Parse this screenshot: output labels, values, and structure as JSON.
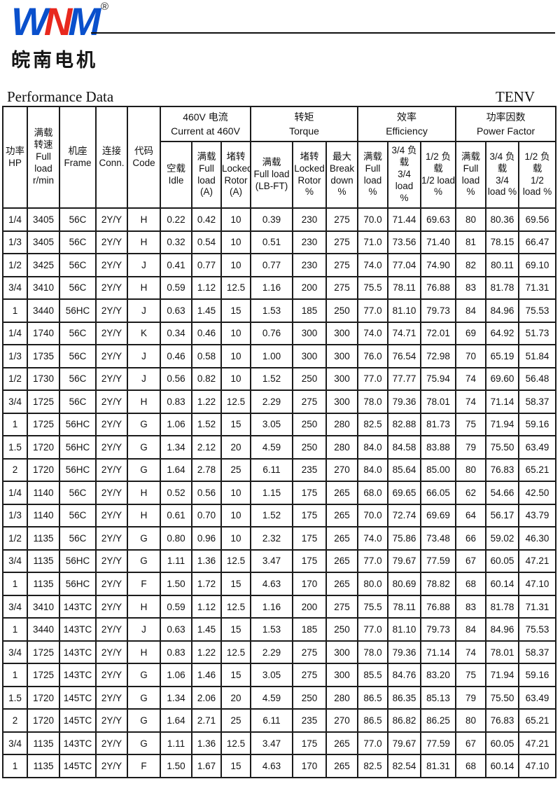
{
  "page": {
    "logo": {
      "letter_w": "W",
      "letter_n": "N",
      "letter_m": "M",
      "registered": "®",
      "cn_name": "皖南电机",
      "blue": "#0a50cc",
      "red": "#e8281e"
    },
    "title": "Performance Data",
    "enclosure": "TENV"
  },
  "table": {
    "col_headers": {
      "hp": "功率\nHP",
      "speed": "满载\n转速\nFull\nload\nr/min",
      "frame": "机座\nFrame",
      "conn": "连接\nConn.",
      "code": "代码\nCode"
    },
    "groups": {
      "current": "460V 电流\nCurrent at 460V",
      "torque": "转矩\nTorque",
      "efficiency": "效率\nEfficiency",
      "power_factor": "功率因数\nPower Factor"
    },
    "sub_headers": {
      "idle": "空载\nIdle",
      "full_load_a": "满载\nFull\nload\n(A)",
      "locked_rotor_a": "堵转\nLocked\nRotor\n(A)",
      "full_load_lbft": "满载\nFull load\n(LB-FT)",
      "locked_rotor_pct": "堵转\nLocked\nRotor\n%",
      "breakdown_pct": "最大\nBreak\ndown\n%",
      "eff_full": "满载\nFull\nload\n%",
      "eff_34": "3/4 负\n载\n3/4 load\n%",
      "eff_12": "1/2 负\n载\n1/2 load\n%",
      "pf_full": "满载\nFull\nload %",
      "pf_34": "3/4 负\n载\n3/4\nload %",
      "pf_12": "1/2 负\n载\n1/2\nload %"
    },
    "rows": [
      [
        "1/4",
        "3405",
        "56C",
        "2Y/Y",
        "H",
        "0.22",
        "0.42",
        "10",
        "0.39",
        "230",
        "275",
        "70.0",
        "71.44",
        "69.63",
        "80",
        "80.36",
        "69.56"
      ],
      [
        "1/3",
        "3405",
        "56C",
        "2Y/Y",
        "H",
        "0.32",
        "0.54",
        "10",
        "0.51",
        "230",
        "275",
        "71.0",
        "73.56",
        "71.40",
        "81",
        "78.15",
        "66.47"
      ],
      [
        "1/2",
        "3425",
        "56C",
        "2Y/Y",
        "J",
        "0.41",
        "0.77",
        "10",
        "0.77",
        "230",
        "275",
        "74.0",
        "77.04",
        "74.90",
        "82",
        "80.11",
        "69.10"
      ],
      [
        "3/4",
        "3410",
        "56C",
        "2Y/Y",
        "H",
        "0.59",
        "1.12",
        "12.5",
        "1.16",
        "200",
        "275",
        "75.5",
        "78.11",
        "76.88",
        "83",
        "81.78",
        "71.31"
      ],
      [
        "1",
        "3440",
        "56HC",
        "2Y/Y",
        "J",
        "0.63",
        "1.45",
        "15",
        "1.53",
        "185",
        "250",
        "77.0",
        "81.10",
        "79.73",
        "84",
        "84.96",
        "75.53"
      ],
      [
        "1/4",
        "1740",
        "56C",
        "2Y/Y",
        "K",
        "0.34",
        "0.46",
        "10",
        "0.76",
        "300",
        "300",
        "74.0",
        "74.71",
        "72.01",
        "69",
        "64.92",
        "51.73"
      ],
      [
        "1/3",
        "1735",
        "56C",
        "2Y/Y",
        "J",
        "0.46",
        "0.58",
        "10",
        "1.00",
        "300",
        "300",
        "76.0",
        "76.54",
        "72.98",
        "70",
        "65.19",
        "51.84"
      ],
      [
        "1/2",
        "1730",
        "56C",
        "2Y/Y",
        "J",
        "0.56",
        "0.82",
        "10",
        "1.52",
        "250",
        "300",
        "77.0",
        "77.77",
        "75.94",
        "74",
        "69.60",
        "56.48"
      ],
      [
        "3/4",
        "1725",
        "56C",
        "2Y/Y",
        "H",
        "0.83",
        "1.22",
        "12.5",
        "2.29",
        "275",
        "300",
        "78.0",
        "79.36",
        "78.01",
        "74",
        "71.14",
        "58.37"
      ],
      [
        "1",
        "1725",
        "56HC",
        "2Y/Y",
        "G",
        "1.06",
        "1.52",
        "15",
        "3.05",
        "250",
        "280",
        "82.5",
        "82.88",
        "81.73",
        "75",
        "71.94",
        "59.16"
      ],
      [
        "1.5",
        "1720",
        "56HC",
        "2Y/Y",
        "G",
        "1.34",
        "2.12",
        "20",
        "4.59",
        "250",
        "280",
        "84.0",
        "84.58",
        "83.88",
        "79",
        "75.50",
        "63.49"
      ],
      [
        "2",
        "1720",
        "56HC",
        "2Y/Y",
        "G",
        "1.64",
        "2.78",
        "25",
        "6.11",
        "235",
        "270",
        "84.0",
        "85.64",
        "85.00",
        "80",
        "76.83",
        "65.21"
      ],
      [
        "1/4",
        "1140",
        "56C",
        "2Y/Y",
        "H",
        "0.52",
        "0.56",
        "10",
        "1.15",
        "175",
        "265",
        "68.0",
        "69.65",
        "66.05",
        "62",
        "54.66",
        "42.50"
      ],
      [
        "1/3",
        "1140",
        "56C",
        "2Y/Y",
        "H",
        "0.61",
        "0.70",
        "10",
        "1.52",
        "175",
        "265",
        "70.0",
        "72.74",
        "69.69",
        "64",
        "56.17",
        "43.79"
      ],
      [
        "1/2",
        "1135",
        "56C",
        "2Y/Y",
        "G",
        "0.80",
        "0.96",
        "10",
        "2.32",
        "175",
        "265",
        "74.0",
        "75.86",
        "73.48",
        "66",
        "59.02",
        "46.30"
      ],
      [
        "3/4",
        "1135",
        "56HC",
        "2Y/Y",
        "G",
        "1.11",
        "1.36",
        "12.5",
        "3.47",
        "175",
        "265",
        "77.0",
        "79.67",
        "77.59",
        "67",
        "60.05",
        "47.21"
      ],
      [
        "1",
        "1135",
        "56HC",
        "2Y/Y",
        "F",
        "1.50",
        "1.72",
        "15",
        "4.63",
        "170",
        "265",
        "80.0",
        "80.69",
        "78.82",
        "68",
        "60.14",
        "47.10"
      ],
      [
        "3/4",
        "3410",
        "143TC",
        "2Y/Y",
        "H",
        "0.59",
        "1.12",
        "12.5",
        "1.16",
        "200",
        "275",
        "75.5",
        "78.11",
        "76.88",
        "83",
        "81.78",
        "71.31"
      ],
      [
        "1",
        "3440",
        "143TC",
        "2Y/Y",
        "J",
        "0.63",
        "1.45",
        "15",
        "1.53",
        "185",
        "250",
        "77.0",
        "81.10",
        "79.73",
        "84",
        "84.96",
        "75.53"
      ],
      [
        "3/4",
        "1725",
        "143TC",
        "2Y/Y",
        "H",
        "0.83",
        "1.22",
        "12.5",
        "2.29",
        "275",
        "300",
        "78.0",
        "79.36",
        "71.14",
        "74",
        "78.01",
        "58.37"
      ],
      [
        "1",
        "1725",
        "143TC",
        "2Y/Y",
        "G",
        "1.06",
        "1.46",
        "15",
        "3.05",
        "275",
        "300",
        "85.5",
        "84.76",
        "83.20",
        "75",
        "71.94",
        "59.16"
      ],
      [
        "1.5",
        "1720",
        "145TC",
        "2Y/Y",
        "G",
        "1.34",
        "2.06",
        "20",
        "4.59",
        "250",
        "280",
        "86.5",
        "86.35",
        "85.13",
        "79",
        "75.50",
        "63.49"
      ],
      [
        "2",
        "1720",
        "145TC",
        "2Y/Y",
        "G",
        "1.64",
        "2.71",
        "25",
        "6.11",
        "235",
        "270",
        "86.5",
        "86.82",
        "86.25",
        "80",
        "76.83",
        "65.21"
      ],
      [
        "3/4",
        "1135",
        "143TC",
        "2Y/Y",
        "G",
        "1.11",
        "1.36",
        "12.5",
        "3.47",
        "175",
        "265",
        "77.0",
        "79.67",
        "77.59",
        "67",
        "60.05",
        "47.21"
      ],
      [
        "1",
        "1135",
        "145TC",
        "2Y/Y",
        "F",
        "1.50",
        "1.67",
        "15",
        "4.63",
        "170",
        "265",
        "82.5",
        "82.54",
        "81.31",
        "68",
        "60.14",
        "47.10"
      ]
    ]
  }
}
